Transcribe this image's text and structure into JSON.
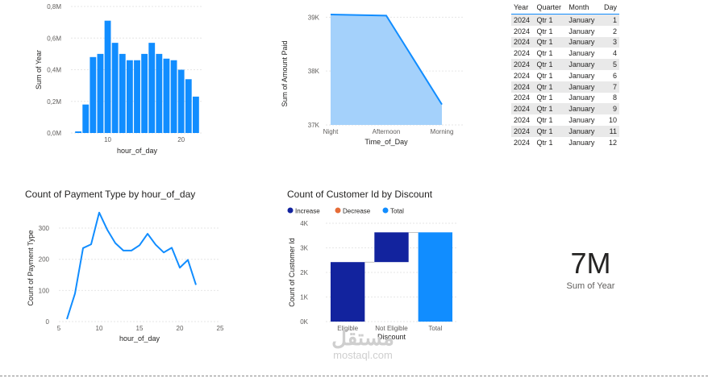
{
  "chart_data": [
    {
      "type": "bar",
      "title": "",
      "xlabel": "hour_of_day",
      "ylabel": "Sum of Year",
      "x": [
        6,
        7,
        8,
        9,
        10,
        11,
        12,
        13,
        14,
        15,
        16,
        17,
        18,
        19,
        20,
        21,
        22
      ],
      "values": [
        0.01,
        0.18,
        0.48,
        0.5,
        0.71,
        0.57,
        0.5,
        0.46,
        0.46,
        0.5,
        0.57,
        0.5,
        0.47,
        0.46,
        0.4,
        0.34,
        0.23
      ],
      "xlim": [
        5,
        23
      ],
      "ylim": [
        0,
        0.8
      ],
      "xticks": [
        10,
        20
      ],
      "yticks": [
        0,
        0.2,
        0.4,
        0.6,
        0.8
      ],
      "ytick_labels": [
        "0,0M",
        "0,2M",
        "0,4M",
        "0,6M",
        "0,8M"
      ],
      "color": "#118dff"
    },
    {
      "type": "area",
      "title": "",
      "xlabel": "Time_of_Day",
      "ylabel": "Sum of Amount Paid",
      "categories": [
        "Night",
        "Afternoon",
        "Morning"
      ],
      "values": [
        39050,
        39030,
        37380
      ],
      "ylim": [
        37000,
        39200
      ],
      "yticks": [
        37000,
        38000,
        39000
      ],
      "ytick_labels": [
        "37K",
        "38K",
        "39K"
      ],
      "line_color": "#118dff",
      "fill_color": "#a4d1fb"
    },
    {
      "type": "line",
      "title": "Count of Payment Type by hour_of_day",
      "xlabel": "hour_of_day",
      "ylabel": "Count of Payment Type",
      "x": [
        6,
        7,
        8,
        9,
        10,
        11,
        12,
        13,
        14,
        15,
        16,
        17,
        18,
        19,
        20,
        21,
        22
      ],
      "values": [
        8,
        90,
        236,
        248,
        350,
        295,
        252,
        228,
        228,
        245,
        282,
        247,
        222,
        237,
        173,
        198,
        118
      ],
      "xlim": [
        5,
        25
      ],
      "ylim": [
        0,
        370
      ],
      "xticks": [
        5,
        10,
        15,
        20,
        25
      ],
      "yticks": [
        0,
        100,
        200,
        300
      ],
      "line_color": "#118dff"
    },
    {
      "type": "bar",
      "subtype": "waterfall",
      "title": "Count of Customer Id by Discount",
      "xlabel": "Discount",
      "ylabel": "Count of Customer Id",
      "categories": [
        "Eligible",
        "Not Eligible",
        "Total"
      ],
      "ranges": [
        [
          0,
          2420
        ],
        [
          2420,
          3630
        ],
        [
          0,
          3630
        ]
      ],
      "kinds": [
        "Increase",
        "Increase",
        "Total"
      ],
      "ylim": [
        0,
        4000
      ],
      "yticks": [
        0,
        1000,
        2000,
        3000,
        4000
      ],
      "ytick_labels": [
        "0K",
        "1K",
        "2K",
        "3K",
        "4K"
      ],
      "legend": [
        {
          "label": "Increase",
          "color": "#12239e"
        },
        {
          "label": "Decrease",
          "color": "#e66c37"
        },
        {
          "label": "Total",
          "color": "#118dff"
        }
      ],
      "legend_position": "top-left"
    }
  ],
  "table": {
    "headers": [
      "Year",
      "Quarter",
      "Month",
      "Day"
    ],
    "rows": [
      [
        "2024",
        "Qtr 1",
        "January",
        "1"
      ],
      [
        "2024",
        "Qtr 1",
        "January",
        "2"
      ],
      [
        "2024",
        "Qtr 1",
        "January",
        "3"
      ],
      [
        "2024",
        "Qtr 1",
        "January",
        "4"
      ],
      [
        "2024",
        "Qtr 1",
        "January",
        "5"
      ],
      [
        "2024",
        "Qtr 1",
        "January",
        "6"
      ],
      [
        "2024",
        "Qtr 1",
        "January",
        "7"
      ],
      [
        "2024",
        "Qtr 1",
        "January",
        "8"
      ],
      [
        "2024",
        "Qtr 1",
        "January",
        "9"
      ],
      [
        "2024",
        "Qtr 1",
        "January",
        "10"
      ],
      [
        "2024",
        "Qtr 1",
        "January",
        "11"
      ],
      [
        "2024",
        "Qtr 1",
        "January",
        "12"
      ]
    ]
  },
  "kpi": {
    "value": "7M",
    "label": "Sum of Year"
  },
  "watermark": {
    "logo": "مستقل",
    "text": "mostaql.com"
  }
}
